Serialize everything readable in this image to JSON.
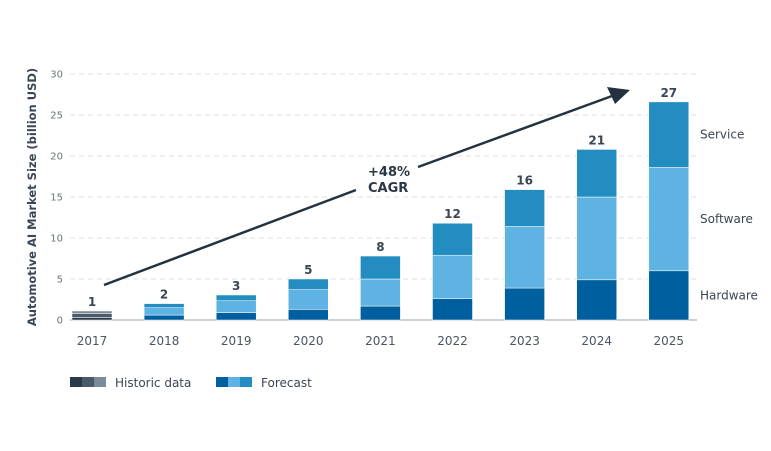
{
  "chart_data": {
    "type": "bar",
    "stacked": true,
    "ylabel": "Automotive AI Market Size (billion USD)",
    "xlabel": "",
    "ylim": [
      0,
      30
    ],
    "yticks": [
      "0",
      "5",
      "10",
      "15",
      "20",
      "25",
      "30"
    ],
    "grid": true,
    "categories": [
      "2017",
      "2018",
      "2019",
      "2020",
      "2021",
      "2022",
      "2023",
      "2024",
      "2025"
    ],
    "totals_labels": [
      "1",
      "2",
      "3",
      "5",
      "8",
      "12",
      "16",
      "21",
      "27"
    ],
    "series": [
      {
        "name": "Hardware",
        "values": [
          0.3,
          0.6,
          0.9,
          1.3,
          1.7,
          2.6,
          3.9,
          4.9,
          6.0
        ],
        "color": "#005f9e",
        "historic_color": "#2b3a4a"
      },
      {
        "name": "Software",
        "values": [
          0.5,
          0.9,
          1.45,
          2.4,
          3.3,
          5.3,
          7.5,
          10.1,
          12.6
        ],
        "color": "#5fb3e3",
        "historic_color": "#4a5a6a"
      },
      {
        "name": "Service",
        "values": [
          0.3,
          0.5,
          0.7,
          1.3,
          2.8,
          3.9,
          4.5,
          5.8,
          8.0
        ],
        "color": "#238dc1",
        "historic_color": "#7a8a98"
      }
    ],
    "historic_categories": [
      "2017"
    ],
    "annotation": {
      "line1": "+48%",
      "line2": "CAGR"
    },
    "legend": {
      "position": "bottom-left",
      "items": [
        {
          "label": "Historic data",
          "colors": [
            "#2b3a4a",
            "#4a5a6a",
            "#7a8a98"
          ]
        },
        {
          "label": "Forecast",
          "colors": [
            "#005f9e",
            "#5fb3e3",
            "#238dc1"
          ]
        }
      ]
    },
    "arrow_color": "#243240"
  }
}
